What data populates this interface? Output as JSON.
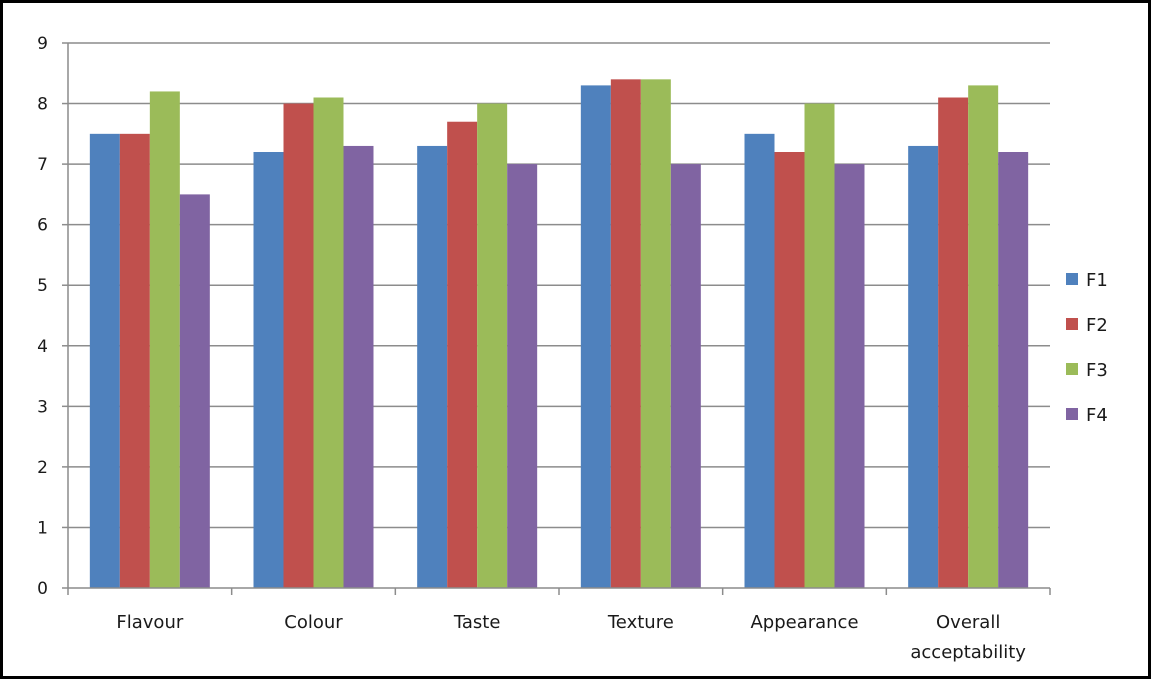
{
  "chart_data": {
    "type": "bar",
    "categories": [
      "Flavour",
      "Colour",
      "Taste",
      "Texture",
      "Appearance",
      "Overall acceptability"
    ],
    "category_lines": [
      [
        "Flavour"
      ],
      [
        "Colour"
      ],
      [
        "Taste"
      ],
      [
        "Texture"
      ],
      [
        "Appearance"
      ],
      [
        "Overall",
        "acceptability"
      ]
    ],
    "series": [
      {
        "name": "F1",
        "color": "#4F81BD",
        "values": [
          7.5,
          7.2,
          7.3,
          8.3,
          7.5,
          7.3
        ]
      },
      {
        "name": "F2",
        "color": "#C0504D",
        "values": [
          7.5,
          8.0,
          7.7,
          8.4,
          7.2,
          8.1
        ]
      },
      {
        "name": "F3",
        "color": "#9BBB59",
        "values": [
          8.2,
          8.1,
          8.0,
          8.4,
          8.0,
          8.3
        ]
      },
      {
        "name": "F4",
        "color": "#8064A2",
        "values": [
          6.5,
          7.3,
          7.0,
          7.0,
          7.0,
          7.2
        ]
      }
    ],
    "ylim": [
      0,
      9
    ],
    "yticks": [
      0,
      1,
      2,
      3,
      4,
      5,
      6,
      7,
      8,
      9
    ],
    "grid": true,
    "legend": "right",
    "title": "",
    "xlabel": "",
    "ylabel": ""
  }
}
